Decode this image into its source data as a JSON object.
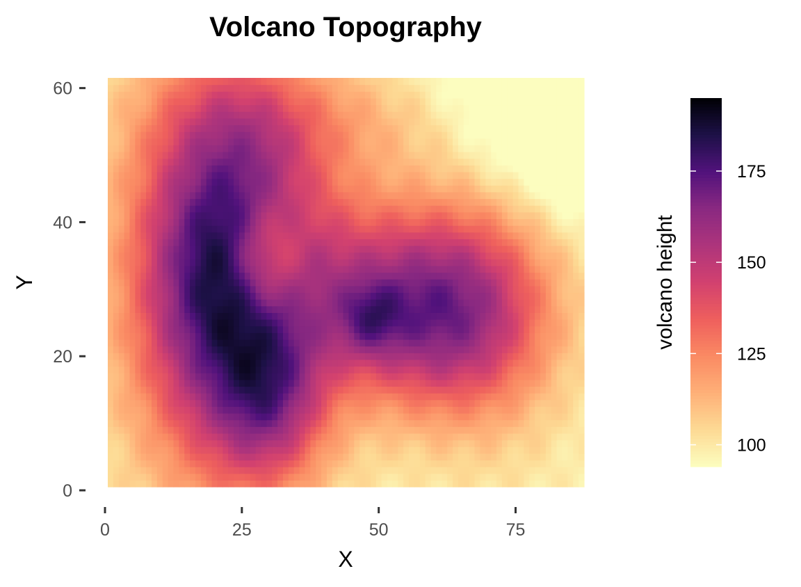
{
  "chart_data": {
    "type": "heatmap",
    "title": "Volcano Topography",
    "xlabel": "X",
    "ylabel": "Y",
    "x_ticks": [
      0,
      25,
      50,
      75
    ],
    "y_ticks": [
      0,
      20,
      40,
      60
    ],
    "xlim": [
      0,
      87
    ],
    "ylim": [
      0,
      61
    ],
    "grid": false,
    "legend": {
      "title": "volcano height",
      "position": "right",
      "ticks": [
        100,
        125,
        150,
        175
      ],
      "range": [
        94,
        195
      ],
      "colormap": "magma"
    },
    "grid_cols": 87,
    "grid_rows": 61,
    "height_model": {
      "base": 97,
      "hills": [
        {
          "x": 22,
          "y": 32,
          "sx": 12,
          "sy": 20,
          "h": 94
        },
        {
          "x": 55,
          "y": 30,
          "sx": 15,
          "sy": 10,
          "h": 45
        },
        {
          "x": 60,
          "y": 22,
          "sx": 12,
          "sy": 9,
          "h": 28
        },
        {
          "x": 30,
          "y": 12,
          "sx": 7,
          "sy": 8,
          "h": 30
        },
        {
          "x": 48,
          "y": 25,
          "sx": 4,
          "sy": 4,
          "h": 22
        },
        {
          "x": 70,
          "y": 28,
          "sx": 10,
          "sy": 15,
          "h": 18
        },
        {
          "x": 40,
          "y": 55,
          "sx": 20,
          "sy": 6,
          "h": 14
        }
      ],
      "crater": {
        "x": 29,
        "y": 34,
        "sx": 5,
        "sy": 6,
        "depth": 38
      },
      "cut_northeast": {
        "x": 82,
        "y": 58,
        "sx": 14,
        "sy": 12,
        "depth": 30
      }
    },
    "colormap_stops": [
      {
        "t": 0.0,
        "color": "#fcfdbf"
      },
      {
        "t": 0.1,
        "color": "#fdda94"
      },
      {
        "t": 0.2,
        "color": "#feb078"
      },
      {
        "t": 0.3,
        "color": "#fa8a63"
      },
      {
        "t": 0.4,
        "color": "#ee5f5d"
      },
      {
        "t": 0.5,
        "color": "#d2416f"
      },
      {
        "t": 0.6,
        "color": "#ad347c"
      },
      {
        "t": 0.7,
        "color": "#8a2981"
      },
      {
        "t": 0.8,
        "color": "#51127c"
      },
      {
        "t": 0.9,
        "color": "#1d1147"
      },
      {
        "t": 1.0,
        "color": "#000004"
      }
    ]
  }
}
